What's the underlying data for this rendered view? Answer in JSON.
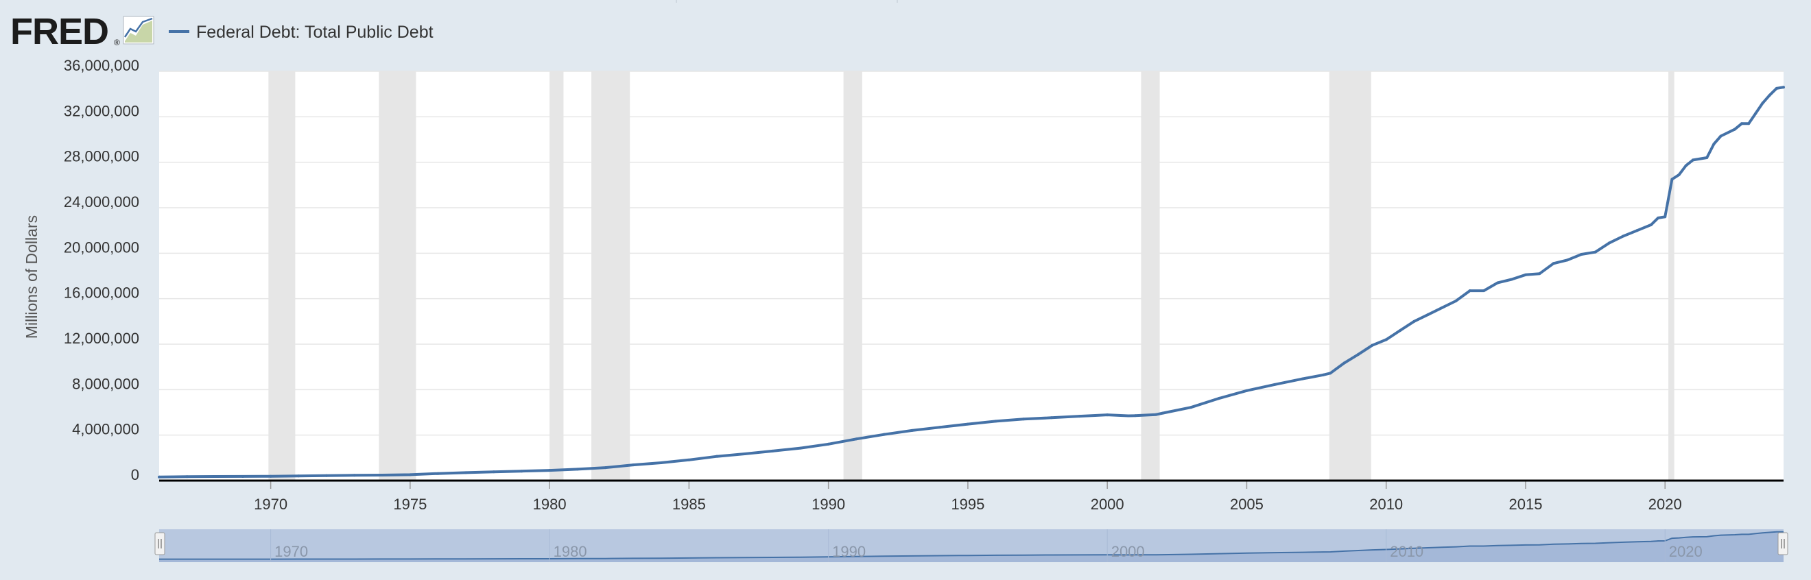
{
  "header": {
    "logo_text": "FRED",
    "logo_mark": "®",
    "legend_label": "Federal Debt: Total Public Debt"
  },
  "colors": {
    "background": "#e1e9f0",
    "plot_background": "#ffffff",
    "series_line": "#4572a7",
    "recession_band": "#e6e6e6",
    "grid": "#e6e6e6",
    "axis": "#000000",
    "navigator_fill": "#b8c8e0"
  },
  "icons": {
    "logo_chart": "fred-chart-logo-icon",
    "legend_swatch": "legend-line-icon",
    "navigator_handle": "range-handle-icon"
  },
  "chart_data": {
    "type": "line",
    "title": "",
    "xlabel": "",
    "ylabel": "Millions of Dollars",
    "xlim": [
      1966.0,
      2024.25
    ],
    "ylim": [
      0,
      36000000
    ],
    "y_ticks": [
      0,
      4000000,
      8000000,
      12000000,
      16000000,
      20000000,
      24000000,
      28000000,
      32000000,
      36000000
    ],
    "y_tick_labels": [
      "0",
      "4,000,000",
      "8,000,000",
      "12,000,000",
      "16,000,000",
      "20,000,000",
      "24,000,000",
      "28,000,000",
      "32,000,000",
      "36,000,000"
    ],
    "x_ticks": [
      1970,
      1975,
      1980,
      1985,
      1990,
      1995,
      2000,
      2005,
      2010,
      2015,
      2020
    ],
    "x_tick_labels": [
      "1970",
      "1975",
      "1980",
      "1985",
      "1990",
      "1995",
      "2000",
      "2005",
      "2010",
      "2015",
      "2020"
    ],
    "grid": true,
    "legend": "top-left",
    "recessions": [
      [
        1969.92,
        1970.88
      ],
      [
        1973.88,
        1975.21
      ],
      [
        1980.0,
        1980.5
      ],
      [
        1981.5,
        1982.88
      ],
      [
        1990.54,
        1991.21
      ],
      [
        2001.21,
        2001.88
      ],
      [
        2007.96,
        2009.46
      ],
      [
        2020.12,
        2020.33
      ]
    ],
    "series": [
      {
        "name": "Federal Debt: Total Public Debt",
        "x": [
          1966.0,
          1967.0,
          1968.0,
          1969.0,
          1970.0,
          1971.0,
          1972.0,
          1973.0,
          1974.0,
          1975.0,
          1976.0,
          1977.0,
          1978.0,
          1979.0,
          1980.0,
          1981.0,
          1982.0,
          1983.0,
          1984.0,
          1985.0,
          1986.0,
          1987.0,
          1988.0,
          1989.0,
          1990.0,
          1991.0,
          1992.0,
          1993.0,
          1994.0,
          1995.0,
          1996.0,
          1997.0,
          1998.0,
          1999.0,
          2000.0,
          2000.75,
          2001.0,
          2001.75,
          2002.0,
          2003.0,
          2004.0,
          2005.0,
          2006.0,
          2007.0,
          2007.75,
          2008.0,
          2008.5,
          2009.0,
          2009.5,
          2010.0,
          2010.5,
          2011.0,
          2011.5,
          2012.0,
          2012.5,
          2013.0,
          2013.5,
          2014.0,
          2014.5,
          2015.0,
          2015.5,
          2016.0,
          2016.5,
          2017.0,
          2017.5,
          2018.0,
          2018.5,
          2019.0,
          2019.5,
          2019.75,
          2020.0,
          2020.25,
          2020.5,
          2020.75,
          2021.0,
          2021.5,
          2021.75,
          2022.0,
          2022.5,
          2022.75,
          2023.0,
          2023.25,
          2023.5,
          2023.75,
          2024.0,
          2024.25
        ],
        "y": [
          320000,
          345000,
          360000,
          365000,
          380000,
          410000,
          435000,
          465000,
          480000,
          520000,
          620000,
          700000,
          770000,
          830000,
          900000,
          1000000,
          1140000,
          1380000,
          1570000,
          1820000,
          2130000,
          2350000,
          2600000,
          2860000,
          3210000,
          3660000,
          4060000,
          4410000,
          4690000,
          4970000,
          5220000,
          5410000,
          5530000,
          5660000,
          5780000,
          5700000,
          5710000,
          5810000,
          5940000,
          6440000,
          7230000,
          7910000,
          8450000,
          8950000,
          9300000,
          9450000,
          10350000,
          11100000,
          11900000,
          12400000,
          13200000,
          14000000,
          14600000,
          15200000,
          15800000,
          16700000,
          16700000,
          17400000,
          17700000,
          18100000,
          18200000,
          19100000,
          19400000,
          19900000,
          20100000,
          20900000,
          21500000,
          22000000,
          22500000,
          23100000,
          23200000,
          26500000,
          26900000,
          27700000,
          28200000,
          28400000,
          29600000,
          30300000,
          30900000,
          31400000,
          31400000,
          32300000,
          33200000,
          33900000,
          34500000,
          34600000
        ]
      }
    ]
  },
  "navigator": {
    "tick_labels": [
      "1970",
      "1980",
      "1990",
      "2000",
      "2010",
      "2020"
    ]
  }
}
